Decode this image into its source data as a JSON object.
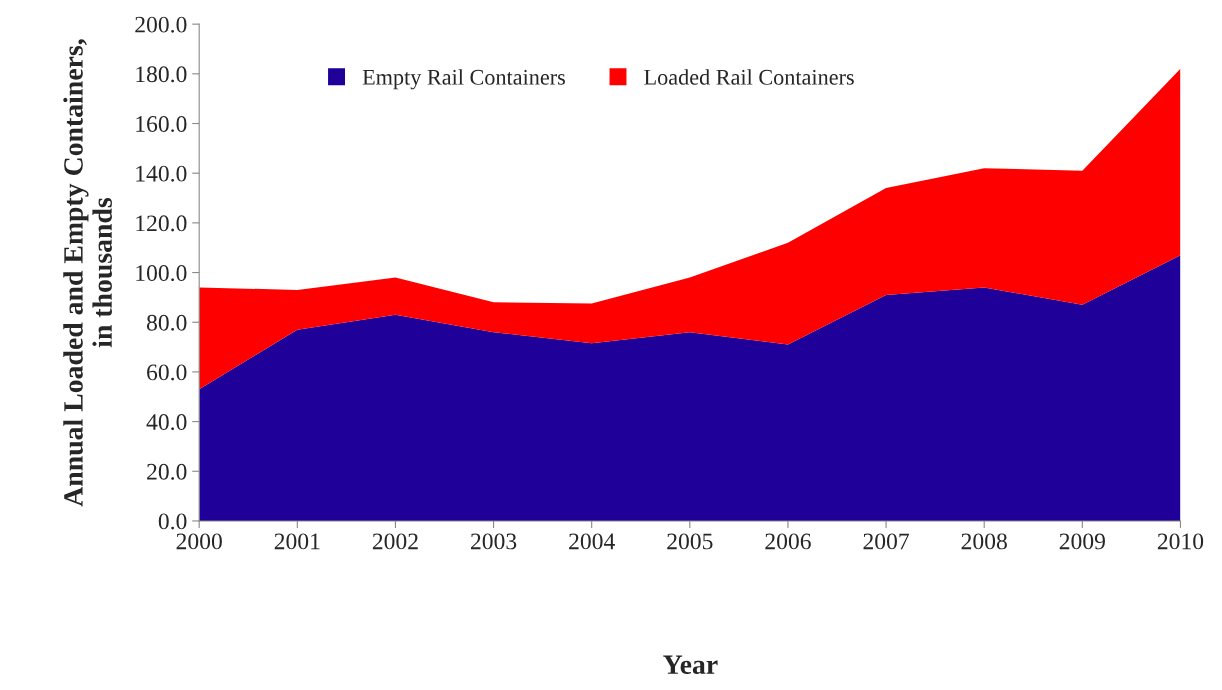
{
  "chart_data": {
    "type": "area",
    "stacked": true,
    "xlabel": "Year",
    "ylabel": "Annual Loaded and Empty Containers,\nin thousands",
    "categories": [
      "2000",
      "2001",
      "2002",
      "2003",
      "2004",
      "2005",
      "2006",
      "2007",
      "2008",
      "2009",
      "2010"
    ],
    "series": [
      {
        "name": "Empty Rail Containers",
        "color": "#1f0099",
        "values": [
          53,
          77,
          83,
          76,
          71.5,
          76,
          71,
          91,
          94,
          87,
          107
        ]
      },
      {
        "name": "Loaded Rail Containers",
        "color": "#ff0000",
        "values": [
          41,
          16,
          15,
          12,
          16,
          22,
          41,
          43,
          48,
          54,
          75
        ]
      }
    ],
    "ylim": [
      0,
      200
    ],
    "yticks": [
      {
        "value": 0,
        "label": "0.0"
      },
      {
        "value": 20,
        "label": "20.0"
      },
      {
        "value": 40,
        "label": "40.0"
      },
      {
        "value": 60,
        "label": "60.0"
      },
      {
        "value": 80,
        "label": "80.0"
      },
      {
        "value": 100,
        "label": "100.0"
      },
      {
        "value": 120,
        "label": "120.0"
      },
      {
        "value": 140,
        "label": "140.0"
      },
      {
        "value": 160,
        "label": "160.0"
      },
      {
        "value": 180,
        "label": "180.0"
      },
      {
        "value": 200,
        "label": "200.0"
      }
    ],
    "grid": false,
    "legend": "top"
  }
}
